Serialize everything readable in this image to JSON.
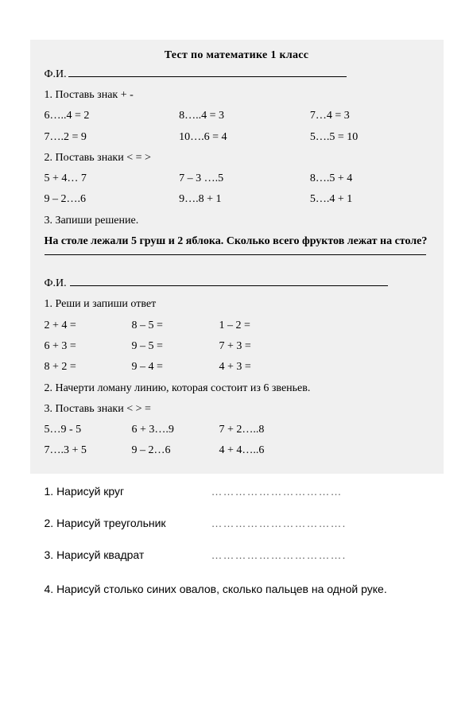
{
  "title": "Тест по математике    1 класс",
  "fi_label": "Ф.И.",
  "section1": {
    "heading": "1. Поставь знак  +   -",
    "rows": [
      {
        "a": "6…..4 = 2",
        "b": "8…..4 = 3",
        "c": "7…4 = 3"
      },
      {
        "a": "7….2 = 9",
        "b": "10….6 = 4",
        "c": "5….5 = 10"
      }
    ]
  },
  "section2": {
    "heading": "2. Поставь знаки  <  =  >",
    "rows": [
      {
        "a": "5 + 4… 7",
        "b": "7 – 3 ….5",
        "c": "8….5 + 4"
      },
      {
        "a": "9 – 2….6",
        "b": "9….8 + 1",
        "c": "5….4 + 1"
      }
    ]
  },
  "section3": {
    "heading": "3. Запиши решение.",
    "task": "На столе лежали 5 груш и 2 яблока. Сколько всего фруктов лежат на столе?"
  },
  "fi2_label": "Ф.И.",
  "sectionB1": {
    "heading": "1. Реши и запиши ответ",
    "rows": [
      {
        "a": "2 + 4 =",
        "b": "8 – 5 =",
        "c": "1 – 2 ="
      },
      {
        "a": "6 + 3 =",
        "b": "9 – 5 =",
        "c": "7 + 3 ="
      },
      {
        "a": "8 + 2 =",
        "b": "9 – 4 =",
        "c": "4 + 3 ="
      }
    ]
  },
  "sectionB2": " 2. Начерти ломану линию, которая состоит из 6 звеньев.",
  "sectionB3": {
    "heading": "3. Поставь знаки  <  >  =",
    "rows": [
      {
        "a": "5…9 - 5",
        "b": "6 + 3….9",
        "c": "7 + 2…..8"
      },
      {
        "a": "7….3 + 5",
        "b": "9 – 2…6",
        "c": "4 + 4…..6"
      }
    ]
  },
  "draw": {
    "items": [
      {
        "num": "1",
        "label": ". Нарисуй круг",
        "dots": "……………………………"
      },
      {
        "num": "2",
        "label": ". Нарисуй треугольник",
        "dots": "……………………………."
      },
      {
        "num": "3",
        "label": ". Нарисуй квадрат",
        "dots": "……………………………."
      }
    ],
    "item4": "4. Нарисуй столько синих овалов, сколько пальцев на одной руке."
  }
}
